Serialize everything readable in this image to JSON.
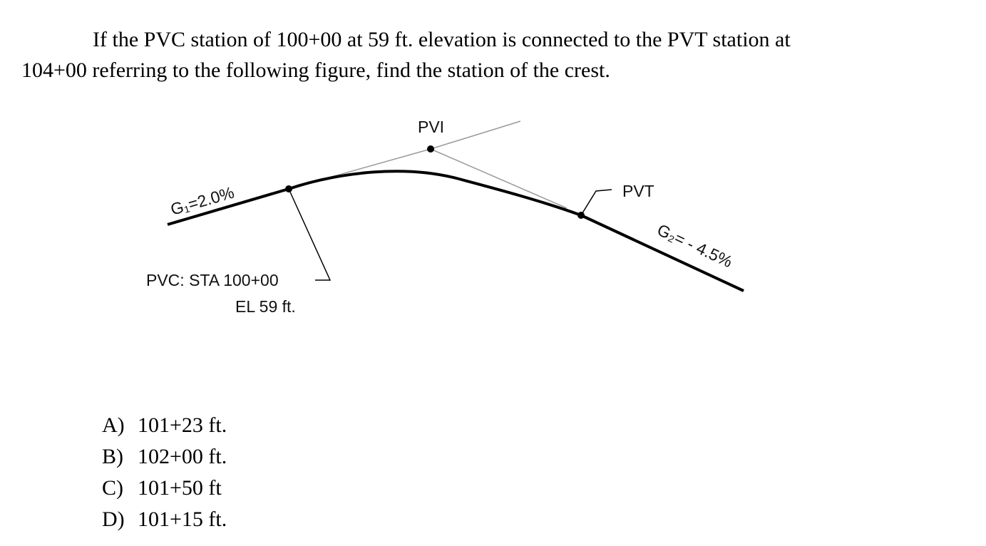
{
  "question": {
    "lines": [
      "If the PVC station of 100+00 at 59 ft. elevation is connected to the PVT station at",
      "104+00 referring to the following figure, find the station of the crest."
    ]
  },
  "figure": {
    "pvi": "PVI",
    "pvt": "PVT",
    "grade_1": "G₁=2.0%",
    "grade_2": "G₂= - 4.5%",
    "pvc_station": "PVC: STA 100+00",
    "pvc_elevation": "EL 59 ft."
  },
  "options": [
    {
      "letter": "A)",
      "text": "101+23 ft."
    },
    {
      "letter": "B)",
      "text": "102+00 ft."
    },
    {
      "letter": "C)",
      "text": "101+50 ft"
    },
    {
      "letter": "D)",
      "text": "101+15 ft."
    }
  ]
}
